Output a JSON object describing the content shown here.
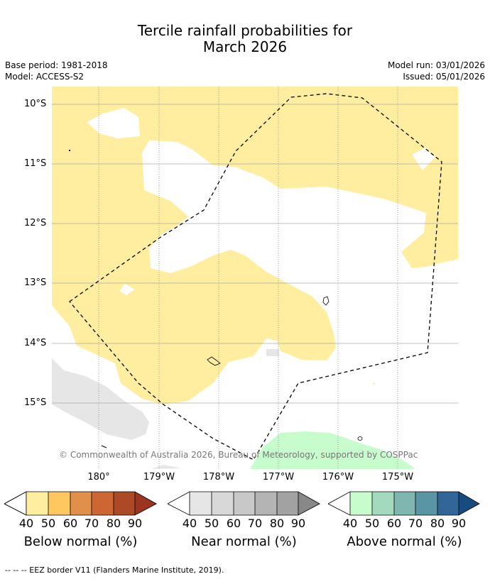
{
  "title_line1": "Tercile rainfall probabilities for",
  "title_line2": "March 2026",
  "base_period": "Base period: 1981-2018",
  "model": "Model: ACCESS-S2",
  "model_run": "Model run: 03/01/2026",
  "issued": "Issued: 05/01/2026",
  "latitude_labels": [
    "10°S",
    "11°S",
    "12°S",
    "13°S",
    "14°S",
    "15°S"
  ],
  "longitude_labels": [
    "180°",
    "179°W",
    "178°W",
    "177°W",
    "176°W",
    "175°W"
  ],
  "copyright": "© Commonwealth of Australia 2026, Bureau of Meteorology, supported by COSPPac",
  "legends": [
    {
      "title": "Below normal (%)",
      "ticks": [
        "40",
        "50",
        "60",
        "70",
        "80",
        "90"
      ],
      "colors": [
        "#ffeda0",
        "#fec760",
        "#e0904a",
        "#cd6633",
        "#ad4a26",
        "#9c3520"
      ]
    },
    {
      "title": "Near normal (%)",
      "ticks": [
        "40",
        "50",
        "60",
        "70",
        "80",
        "90"
      ],
      "colors": [
        "#e6e6e6",
        "#d8d8d8",
        "#c8c8c8",
        "#b4b4b4",
        "#a2a2a2",
        "#888888"
      ]
    },
    {
      "title": "Above normal (%)",
      "ticks": [
        "40",
        "50",
        "60",
        "70",
        "80",
        "90"
      ],
      "colors": [
        "#c7fccd",
        "#a3d9bd",
        "#7fb6b0",
        "#5a95a3",
        "#336698",
        "#184c80"
      ]
    }
  ],
  "footer": "--  --  -- EEZ border V11 (Flanders Marine Institute, 2019).",
  "colors": {
    "below_40": "#ffeda0",
    "near_40": "#e6e6e6",
    "above_40": "#c7fccd",
    "gridline": "#aaaaaa"
  }
}
